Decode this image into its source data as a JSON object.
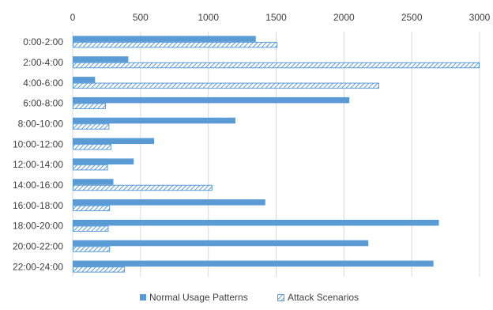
{
  "chart_data": {
    "type": "bar",
    "orientation": "horizontal",
    "categories": [
      "0:00-2:00",
      "2:00-4:00",
      "4:00-6:00",
      "6:00-8:00",
      "8:00-10:00",
      "10:00-12:00",
      "12:00-14:00",
      "14:00-16:00",
      "16:00-18:00",
      "18:00-20:00",
      "20:00-22:00",
      "22:00-24:00"
    ],
    "series": [
      {
        "name": "Normal Usage Patterns",
        "values": [
          1350,
          410,
          165,
          2040,
          1200,
          600,
          450,
          300,
          1420,
          2700,
          2180,
          2660
        ],
        "color": "#5b9bd5",
        "pattern": "solid"
      },
      {
        "name": "Attack Scenarios",
        "values": [
          1510,
          3000,
          2260,
          245,
          270,
          285,
          260,
          1030,
          275,
          265,
          275,
          385
        ],
        "color": "#5b9bd5",
        "pattern": "diagonal-hatch"
      }
    ],
    "xlim": [
      0,
      3000
    ],
    "xticks": [
      0,
      500,
      1000,
      1500,
      2000,
      2500,
      3000
    ],
    "xaxis_position": "top",
    "grid": true,
    "legend_position": "bottom-center",
    "title": "",
    "xlabel": "",
    "ylabel": ""
  }
}
